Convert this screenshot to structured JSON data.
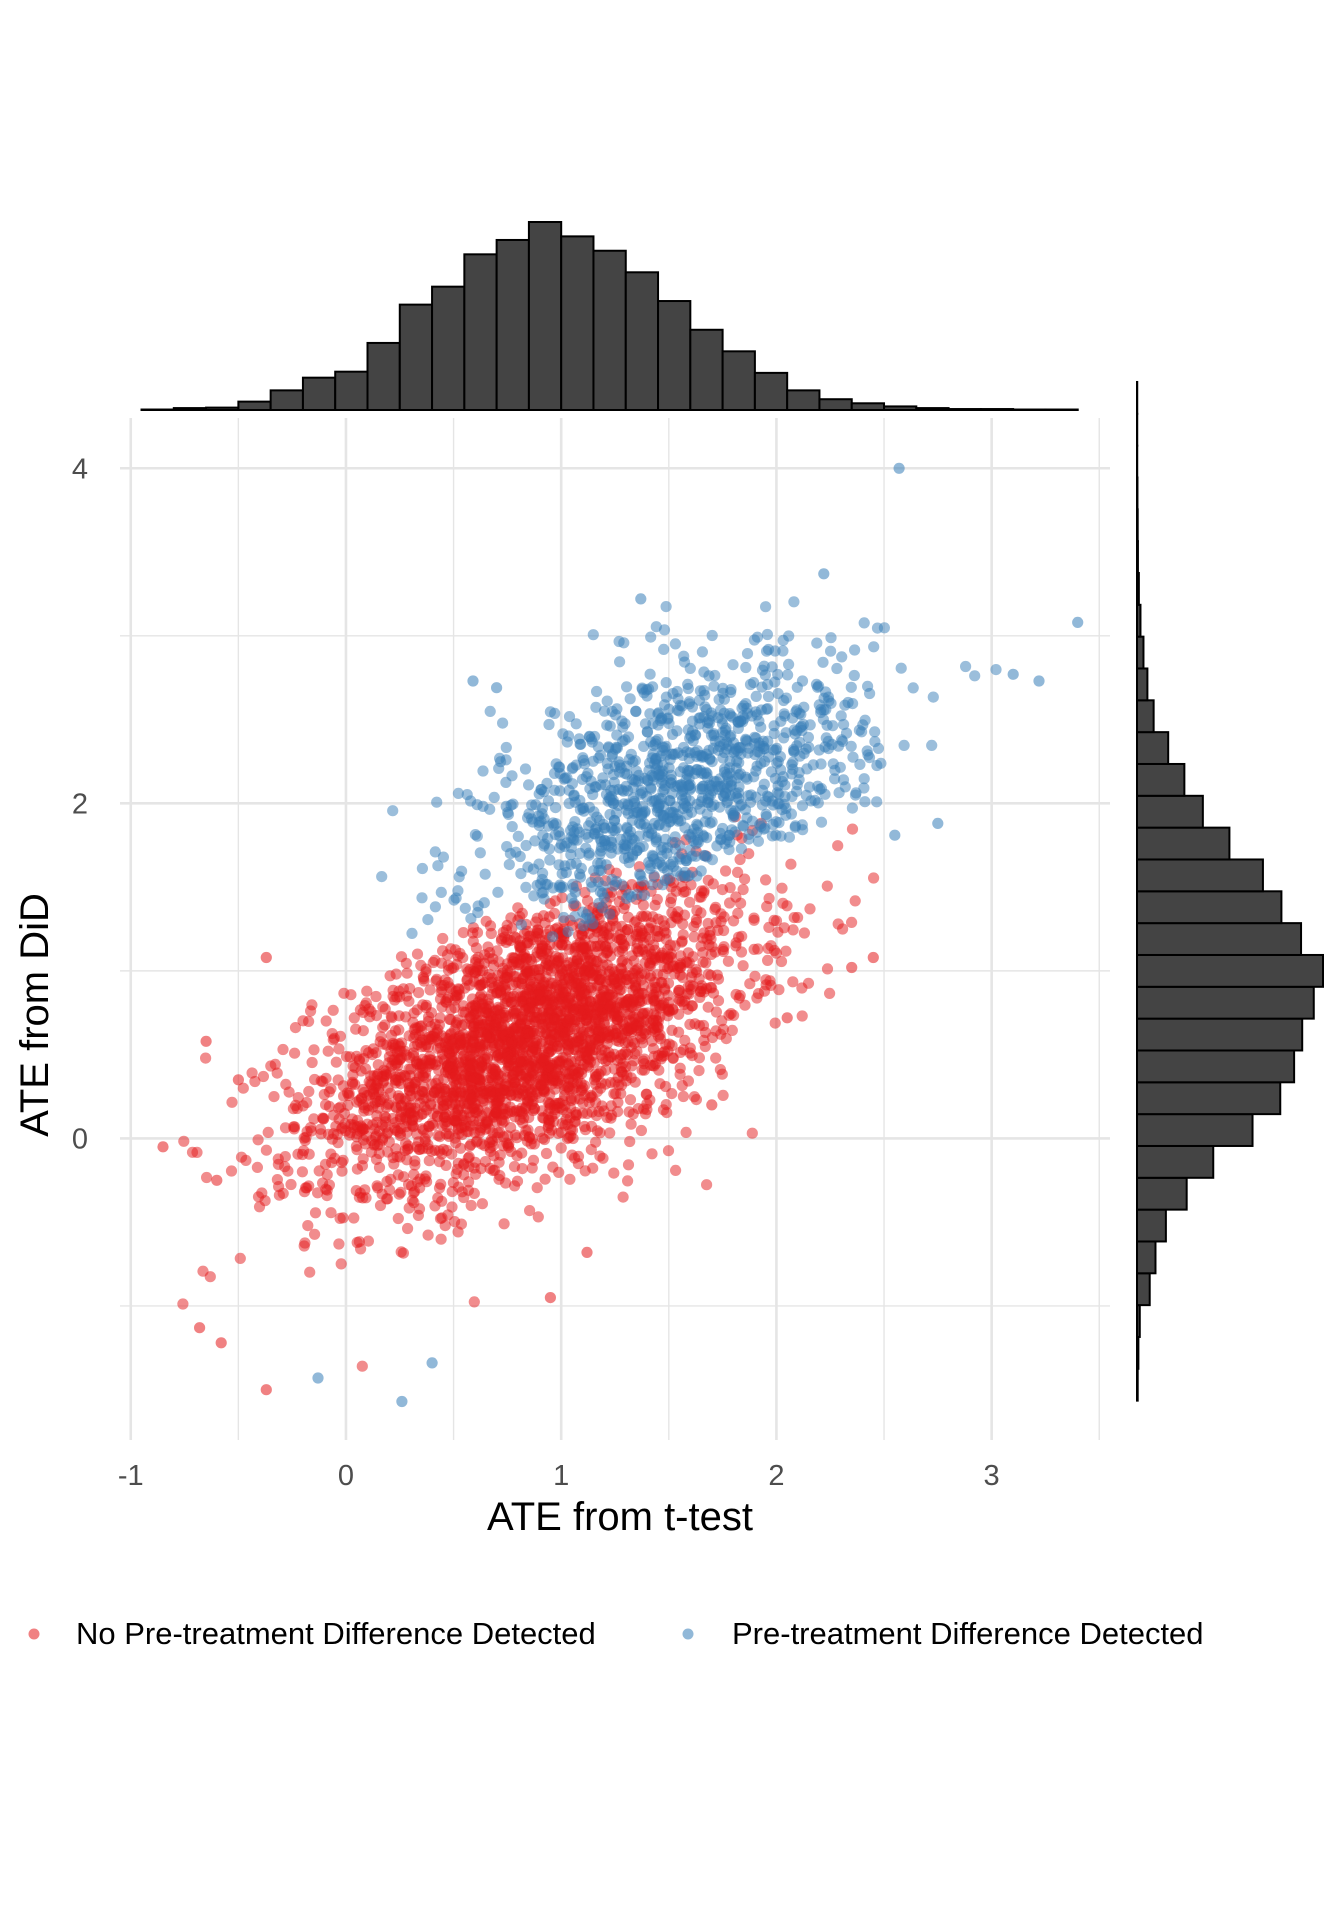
{
  "chart_data": {
    "type": "scatter",
    "xlabel": "ATE from t-test",
    "ylabel": "ATE from DiD",
    "xlim": [
      -1.05,
      3.55
    ],
    "ylim": [
      -1.8,
      4.3
    ],
    "x_ticks": [
      -1,
      0,
      1,
      2,
      3
    ],
    "y_ticks": [
      0,
      2,
      4
    ],
    "x_tick_labels": [
      "-1",
      "0",
      "1",
      "2",
      "3"
    ],
    "y_tick_labels": [
      "0",
      "2",
      "4"
    ],
    "grid": true,
    "legend_position": "bottom",
    "colors": {
      "no_diff": "#e41a1c",
      "diff": "#377eb8",
      "histogram_fill": "#444444",
      "histogram_stroke": "#000000",
      "grid": "#e5e5e5"
    },
    "series": [
      {
        "name": "No Pre-treatment Difference Detected",
        "color": "#e41a1c",
        "approx_count": 3000,
        "center": [
          0.85,
          0.6
        ],
        "sd": [
          0.5,
          0.45
        ],
        "outliers": [
          [
            -0.85,
            -0.05
          ],
          [
            -0.68,
            -1.13
          ],
          [
            -0.6,
            -0.25
          ],
          [
            -0.58,
            -1.22
          ],
          [
            -0.37,
            -1.5
          ],
          [
            -0.5,
            0.35
          ],
          [
            -0.65,
            0.58
          ],
          [
            -0.37,
            1.08
          ],
          [
            0.95,
            -0.95
          ],
          [
            1.12,
            -0.68
          ],
          [
            2.35,
            1.02
          ],
          [
            2.45,
            1.08
          ],
          [
            1.7,
            0.2
          ],
          [
            2.05,
            0.72
          ]
        ]
      },
      {
        "name": "Pre-treatment Difference Detected",
        "color": "#377eb8",
        "approx_count": 1100,
        "center": [
          1.55,
          2.05
        ],
        "sd": [
          0.45,
          0.42
        ],
        "outliers": [
          [
            2.57,
            4.0
          ],
          [
            3.4,
            3.08
          ],
          [
            3.1,
            2.77
          ],
          [
            3.22,
            2.73
          ],
          [
            2.22,
            3.37
          ],
          [
            1.37,
            3.22
          ],
          [
            0.59,
            2.73
          ],
          [
            0.7,
            2.69
          ],
          [
            2.75,
            1.88
          ],
          [
            2.55,
            1.81
          ],
          [
            -0.13,
            -1.43
          ],
          [
            0.26,
            -1.57
          ],
          [
            0.4,
            -1.34
          ]
        ]
      }
    ],
    "marginal_x_histogram": {
      "bin_width": 0.15,
      "bin_start": -0.95,
      "counts": [
        2,
        8,
        10,
        35,
        82,
        135,
        160,
        280,
        440,
        515,
        650,
        710,
        785,
        725,
        665,
        575,
        455,
        335,
        245,
        155,
        82,
        45,
        28,
        15,
        8,
        4,
        4,
        2,
        2
      ]
    },
    "marginal_y_histogram": {
      "bin_width": 0.19,
      "bin_start": -1.565,
      "counts": [
        3,
        6,
        12,
        55,
        80,
        125,
        215,
        330,
        500,
        620,
        680,
        715,
        765,
        805,
        710,
        625,
        545,
        400,
        285,
        205,
        135,
        72,
        45,
        28,
        15,
        8,
        4,
        3,
        2,
        1,
        1,
        1
      ]
    },
    "legend": [
      {
        "label": "No Pre-treatment Difference Detected",
        "color": "#e41a1c"
      },
      {
        "label": "Pre-treatment Difference Detected",
        "color": "#377eb8"
      }
    ]
  }
}
